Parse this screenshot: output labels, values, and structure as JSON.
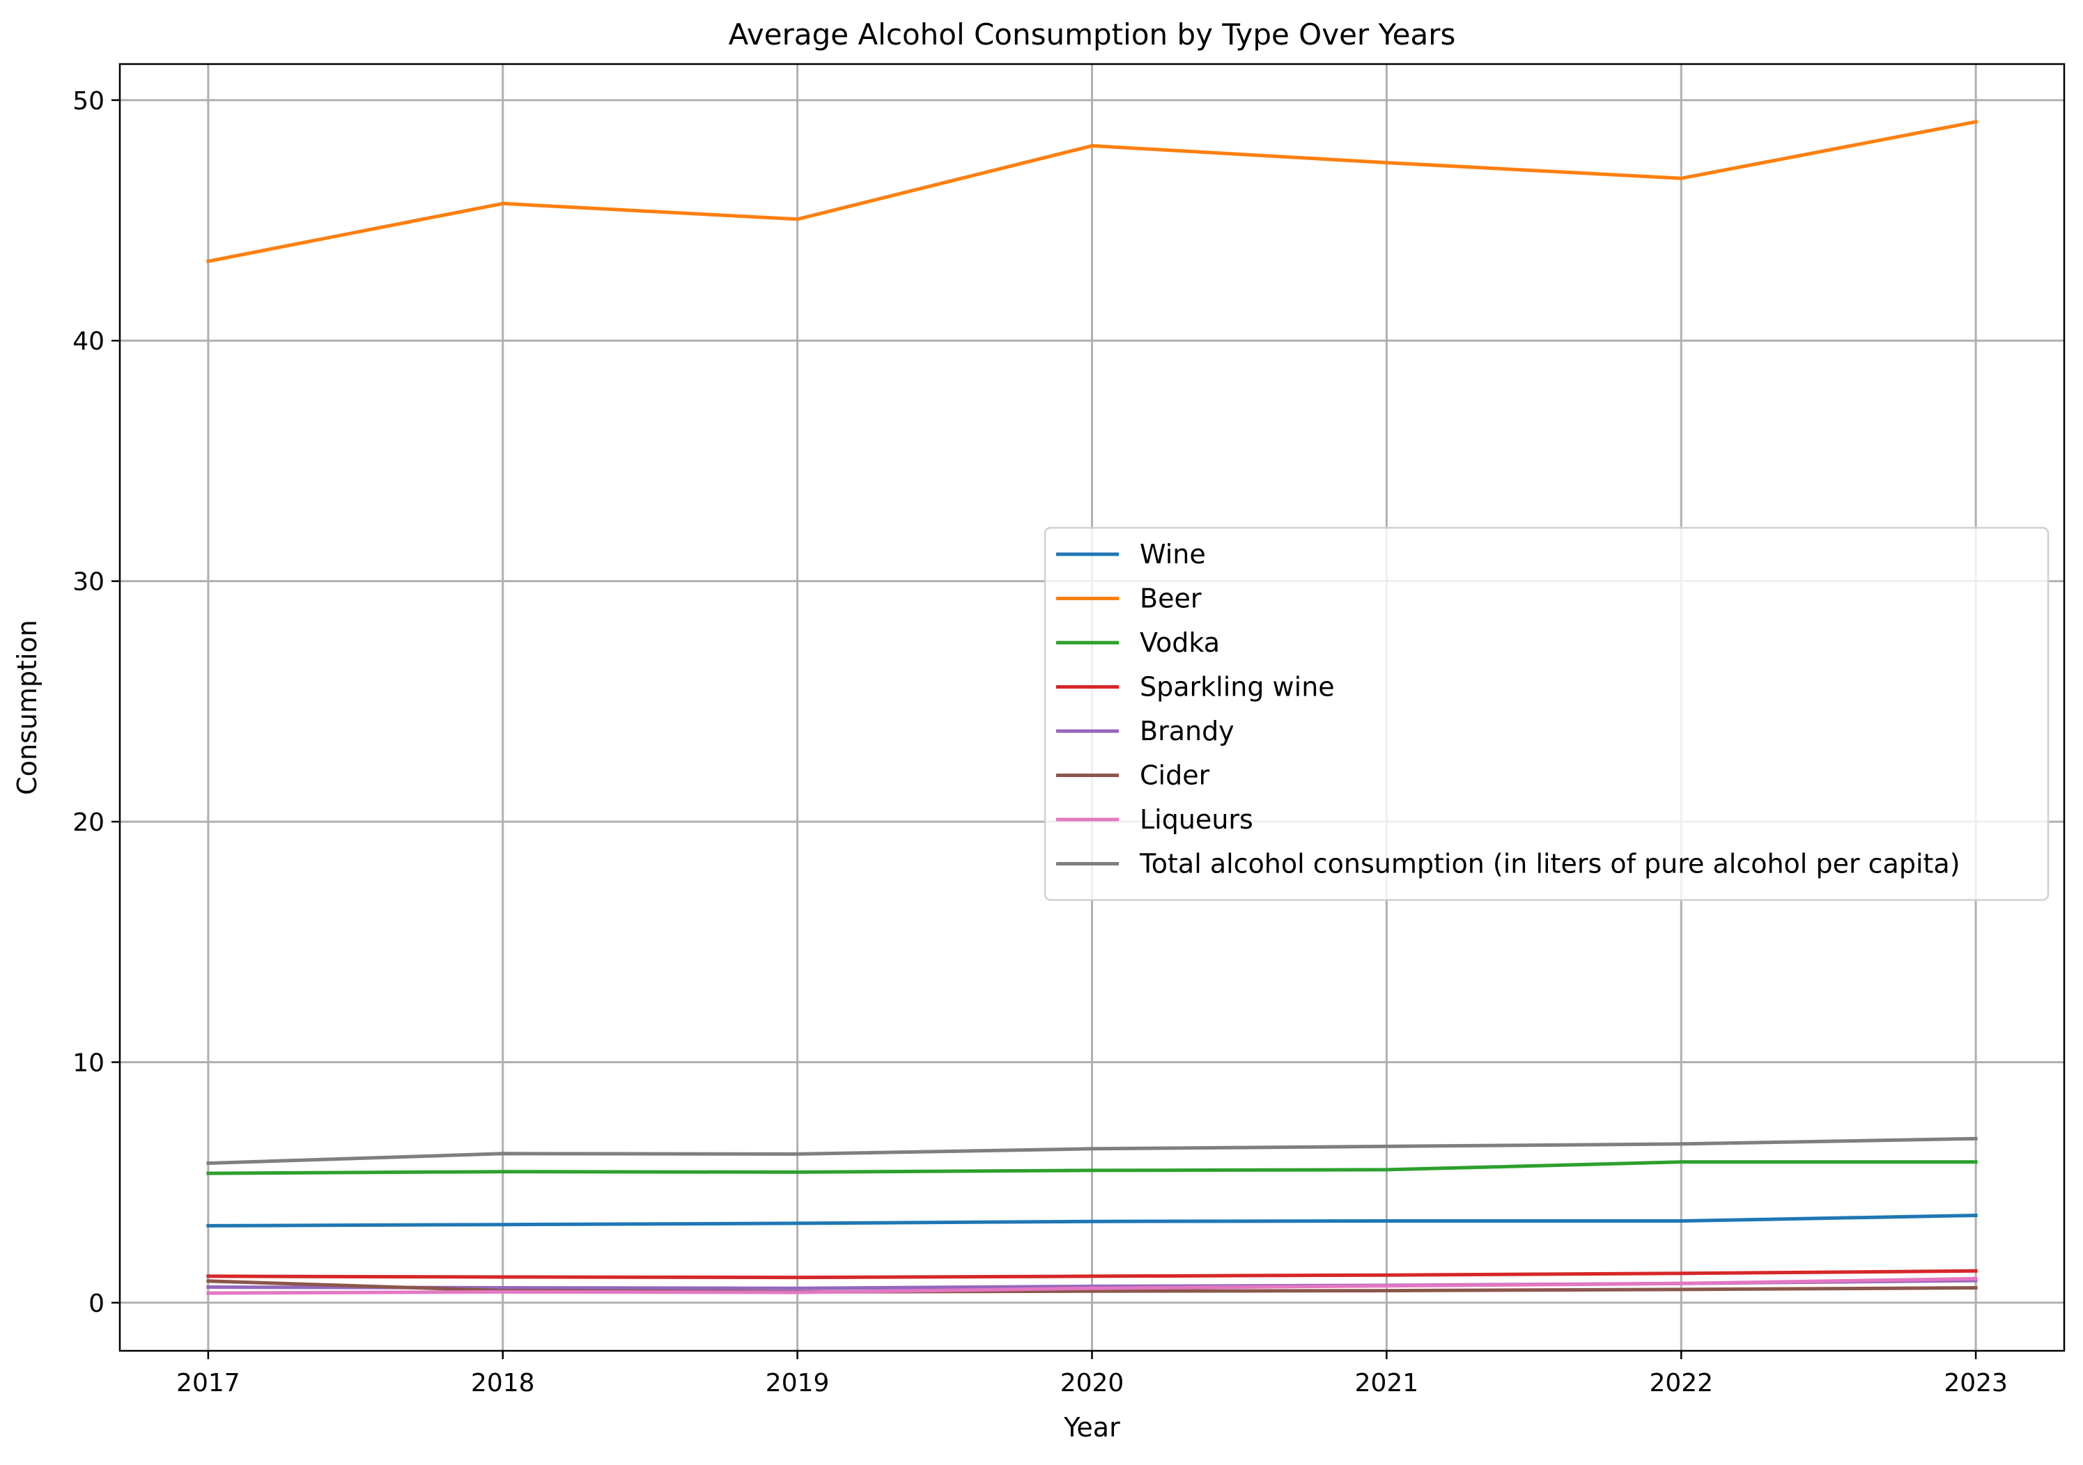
{
  "chart_data": {
    "type": "line",
    "title": "Average Alcohol Consumption by Type Over Years",
    "xlabel": "Year",
    "ylabel": "Consumption",
    "x": [
      2017,
      2018,
      2019,
      2020,
      2021,
      2022,
      2023
    ],
    "x_tick_labels": [
      "2017",
      "2018",
      "2019",
      "2020",
      "2021",
      "2022",
      "2023"
    ],
    "xlim": [
      2016.7,
      2023.3
    ],
    "ylim": [
      -2.0,
      51.5
    ],
    "y_ticks": [
      0,
      10,
      20,
      30,
      40,
      50
    ],
    "y_tick_labels": [
      "0",
      "10",
      "20",
      "30",
      "40",
      "50"
    ],
    "grid": true,
    "legend_position": "center-right",
    "series": [
      {
        "name": "Wine",
        "color": "#1f77b4",
        "values": [
          3.2,
          3.25,
          3.3,
          3.38,
          3.4,
          3.4,
          3.63
        ]
      },
      {
        "name": "Beer",
        "color": "#ff7f0e",
        "values": [
          43.3,
          45.7,
          45.05,
          48.1,
          47.4,
          46.75,
          49.1
        ]
      },
      {
        "name": "Vodka",
        "color": "#2ca02c",
        "values": [
          5.38,
          5.45,
          5.43,
          5.5,
          5.53,
          5.85,
          5.85
        ]
      },
      {
        "name": "Sparkling wine",
        "color": "#d62728",
        "values": [
          1.1,
          1.07,
          1.05,
          1.1,
          1.15,
          1.22,
          1.32
        ]
      },
      {
        "name": "Brandy",
        "color": "#9467bd",
        "values": [
          0.65,
          0.62,
          0.6,
          0.68,
          0.72,
          0.8,
          0.92
        ]
      },
      {
        "name": "Cider",
        "color": "#8c564b",
        "values": [
          0.9,
          0.5,
          0.45,
          0.48,
          0.5,
          0.55,
          0.62
        ]
      },
      {
        "name": "Liqueurs",
        "color": "#e377c2",
        "values": [
          0.4,
          0.45,
          0.43,
          0.6,
          0.7,
          0.8,
          1.0
        ]
      },
      {
        "name": "Total alcohol consumption (in liters of pure alcohol per capita)",
        "color": "#7f7f7f",
        "values": [
          5.8,
          6.2,
          6.18,
          6.4,
          6.5,
          6.6,
          6.82
        ]
      }
    ]
  }
}
